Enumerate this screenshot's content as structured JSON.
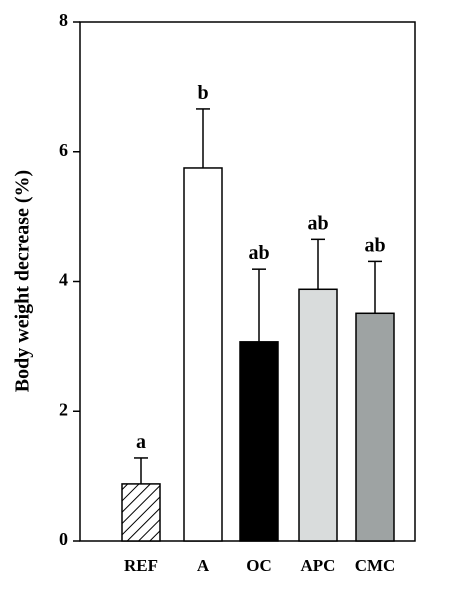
{
  "chart_data": {
    "type": "bar",
    "y_label": "Body weight decrease (%)",
    "categories": [
      "REF",
      "A",
      "OC",
      "APC",
      "CMC"
    ],
    "values": [
      0.88,
      5.75,
      3.07,
      3.88,
      3.51
    ],
    "errors": [
      0.4,
      0.91,
      1.12,
      0.77,
      0.8
    ],
    "group_labels": [
      "a",
      "b",
      "ab",
      "ab",
      "ab"
    ],
    "colors": [
      "#ffffff",
      "#ffffff",
      "#000000",
      "#d9dcdc",
      "#9ea3a3"
    ],
    "hatch": [
      true,
      false,
      false,
      false,
      false
    ],
    "ylim": [
      0,
      8
    ],
    "yticks": [
      0,
      2,
      4,
      6,
      8
    ],
    "grid": false
  }
}
